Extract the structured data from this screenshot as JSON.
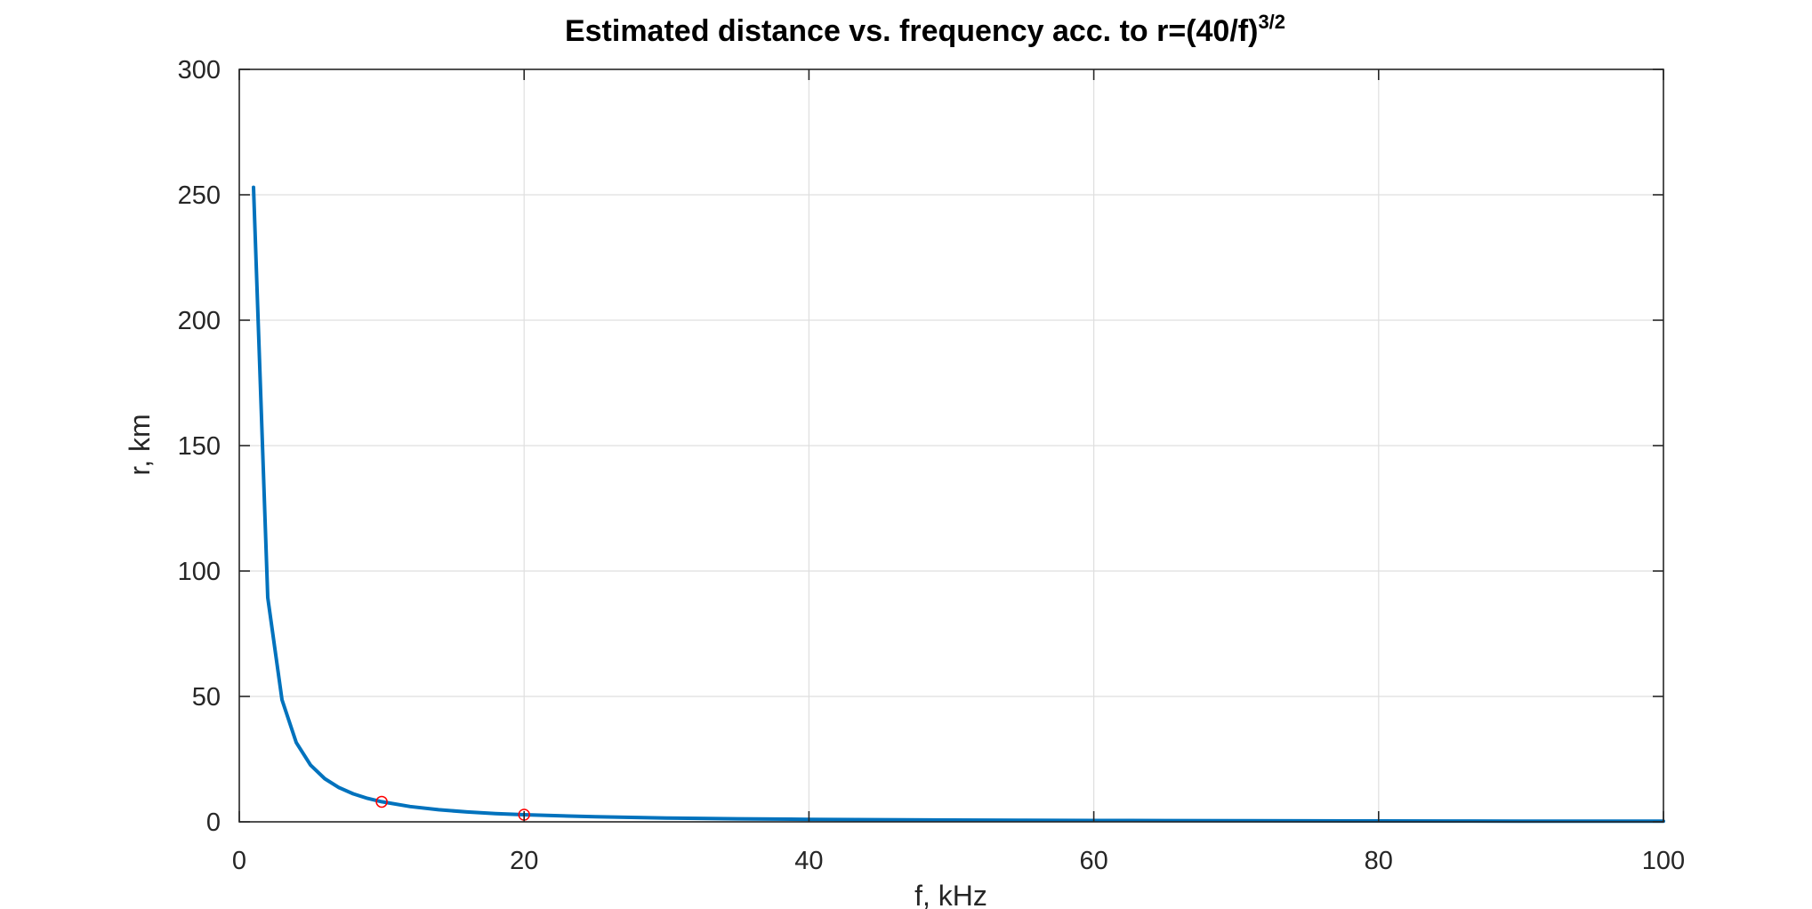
{
  "chart_data": {
    "type": "line",
    "title": {
      "main": "Estimated distance vs. frequency acc. to r=(40/f)",
      "superscript": "3/2"
    },
    "xlabel": "f, kHz",
    "ylabel": "r, km",
    "xlim": [
      0,
      100
    ],
    "ylim": [
      0,
      300
    ],
    "xticks": [
      0,
      20,
      40,
      60,
      80,
      100
    ],
    "yticks": [
      0,
      50,
      100,
      150,
      200,
      250,
      300
    ],
    "xtick_labels": [
      "0",
      "20",
      "40",
      "60",
      "80",
      "100"
    ],
    "ytick_labels": [
      "0",
      "50",
      "100",
      "150",
      "200",
      "250",
      "300"
    ],
    "grid": true,
    "box": true,
    "series": [
      {
        "color": "#0072bd",
        "x": [
          1,
          2,
          3,
          4,
          5,
          6,
          7,
          8,
          9,
          10,
          12,
          14,
          16,
          18,
          20,
          25,
          30,
          35,
          40,
          45,
          50,
          55,
          60,
          65,
          70,
          75,
          80,
          85,
          90,
          95,
          100
        ],
        "y": [
          252.98,
          89.44,
          48.69,
          31.62,
          22.63,
          17.21,
          13.66,
          11.18,
          9.37,
          8.0,
          6.09,
          4.83,
          3.95,
          3.31,
          2.83,
          2.02,
          1.54,
          1.22,
          1.0,
          0.84,
          0.72,
          0.62,
          0.54,
          0.48,
          0.43,
          0.39,
          0.35,
          0.32,
          0.3,
          0.28,
          0.25
        ]
      }
    ],
    "markers": [
      {
        "color": "#ff0000",
        "shape": "circle",
        "x": 10,
        "y": 8.0
      },
      {
        "color": "#ff0000",
        "shape": "circle",
        "x": 20,
        "y": 2.83
      }
    ],
    "colors": {
      "grid": "#dfdfdf",
      "axes": "#262626"
    }
  }
}
